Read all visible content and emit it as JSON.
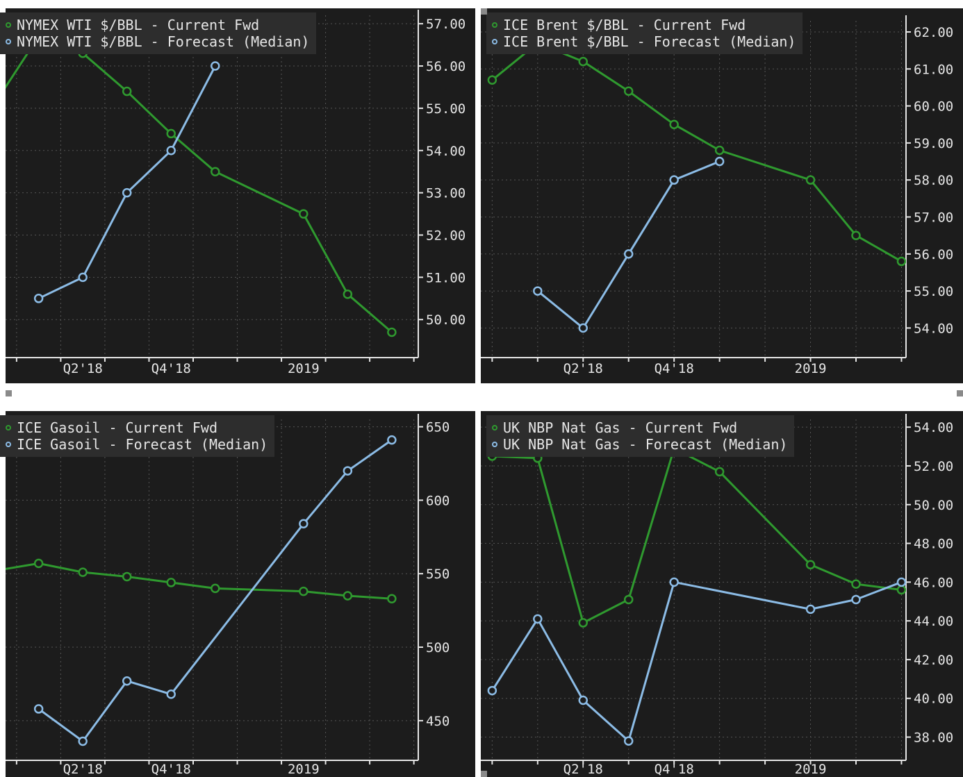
{
  "colors": {
    "background": "#1c1c1c",
    "grid": "#555555",
    "axis": "#e6e6e6",
    "text": "#e6e6e6",
    "current_fwd": "#2f9a2f",
    "forecast_median": "#8cbce6",
    "legend_bg": "#2d2d2d"
  },
  "chart_data": [
    {
      "type": "line",
      "xlim": [
        0,
        9.35
      ],
      "ylim": [
        49.1,
        57.2
      ],
      "y_ticks": [
        50,
        51,
        52,
        53,
        54,
        55,
        56,
        57
      ],
      "y_tick_labels": [
        "50.00",
        "51.00",
        "52.00",
        "53.00",
        "54.00",
        "55.00",
        "56.00",
        "57.00"
      ],
      "x_ticks": [
        1.75,
        3.75,
        6.75
      ],
      "x_tick_labels": [
        "Q2'18",
        "Q4'18",
        "2019"
      ],
      "grid": true,
      "legend": "top-left",
      "series": [
        {
          "name": "NYMEX WTI $/BBL - Current Fwd",
          "color": "current_fwd",
          "x": [
            -0.25,
            0.75,
            1.75,
            2.75,
            3.75,
            4.75,
            6.75,
            7.75,
            8.75
          ],
          "y": [
            55.1,
            56.7,
            56.3,
            55.4,
            54.4,
            53.5,
            52.5,
            50.6,
            49.7
          ]
        },
        {
          "name": "NYMEX WTI $/BBL - Forecast (Median)",
          "color": "forecast_median",
          "x": [
            0.75,
            1.75,
            2.75,
            3.75,
            4.75
          ],
          "y": [
            50.5,
            51.0,
            53.0,
            54.0,
            56.0
          ]
        }
      ]
    },
    {
      "type": "line",
      "xlim": [
        0,
        9.35
      ],
      "ylim": [
        53.2,
        62.3
      ],
      "y_ticks": [
        54,
        55,
        56,
        57,
        58,
        59,
        60,
        61,
        62
      ],
      "y_tick_labels": [
        "54.00",
        "55.00",
        "56.00",
        "57.00",
        "58.00",
        "59.00",
        "60.00",
        "61.00",
        "62.00"
      ],
      "x_ticks": [
        2.25,
        4.25,
        7.25
      ],
      "x_tick_labels": [
        "Q2'18",
        "Q4'18",
        "2019"
      ],
      "grid": true,
      "legend": "top-left",
      "series": [
        {
          "name": "ICE Brent $/BBL - Current Fwd",
          "color": "current_fwd",
          "x": [
            0.25,
            1.25,
            2.25,
            3.25,
            4.25,
            5.25,
            7.25,
            8.25,
            9.25
          ],
          "y": [
            60.7,
            61.7,
            61.2,
            60.4,
            59.5,
            58.8,
            58.0,
            56.5,
            55.8
          ]
        },
        {
          "name": "ICE Brent $/BBL - Forecast (Median)",
          "color": "forecast_median",
          "x": [
            1.25,
            2.25,
            3.25,
            4.25,
            5.25
          ],
          "y": [
            55.0,
            54.0,
            56.0,
            58.0,
            58.5
          ]
        }
      ]
    },
    {
      "type": "line",
      "xlim": [
        0,
        9.35
      ],
      "ylim": [
        423,
        655
      ],
      "y_ticks": [
        450,
        500,
        550,
        600,
        650
      ],
      "y_tick_labels": [
        "450",
        "500",
        "550",
        "600",
        "650"
      ],
      "x_ticks": [
        1.75,
        3.75,
        6.75
      ],
      "x_tick_labels": [
        "Q2'18",
        "Q4'18",
        "2019"
      ],
      "grid": true,
      "legend": "top-left",
      "series": [
        {
          "name": "ICE Gasoil - Current Fwd",
          "color": "current_fwd",
          "x": [
            -0.25,
            0.75,
            1.75,
            2.75,
            3.75,
            4.75,
            6.75,
            7.75,
            8.75
          ],
          "y": [
            552,
            557,
            551,
            548,
            544,
            540,
            538,
            535,
            533
          ]
        },
        {
          "name": "ICE Gasoil - Forecast (Median)",
          "color": "forecast_median",
          "x": [
            0.75,
            1.75,
            2.75,
            3.75,
            6.75,
            7.75,
            8.75
          ],
          "y": [
            458,
            436,
            477,
            468,
            584,
            620,
            641
          ]
        }
      ]
    },
    {
      "type": "line",
      "xlim": [
        0,
        9.35
      ],
      "ylim": [
        36.8,
        54.4
      ],
      "y_ticks": [
        38,
        40,
        42,
        44,
        46,
        48,
        50,
        52,
        54
      ],
      "y_tick_labels": [
        "38.00",
        "40.00",
        "42.00",
        "44.00",
        "46.00",
        "48.00",
        "50.00",
        "52.00",
        "54.00"
      ],
      "x_ticks": [
        2.25,
        4.25,
        7.25
      ],
      "x_tick_labels": [
        "Q2'18",
        "Q4'18",
        "2019"
      ],
      "grid": true,
      "legend": "top-left",
      "series": [
        {
          "name": "UK NBP Nat Gas - Current Fwd",
          "color": "current_fwd",
          "x": [
            0.25,
            1.25,
            2.25,
            3.25,
            4.25,
            5.25,
            7.25,
            8.25,
            9.25
          ],
          "y": [
            52.5,
            52.4,
            43.9,
            45.1,
            52.9,
            51.7,
            46.9,
            45.9,
            45.6
          ]
        },
        {
          "name": "UK NBP Nat Gas - Forecast (Median)",
          "color": "forecast_median",
          "x": [
            0.25,
            1.25,
            2.25,
            3.25,
            4.25,
            7.25,
            8.25,
            9.25
          ],
          "y": [
            40.4,
            44.1,
            39.9,
            37.8,
            46.0,
            44.6,
            45.1,
            46.0
          ]
        }
      ]
    }
  ]
}
